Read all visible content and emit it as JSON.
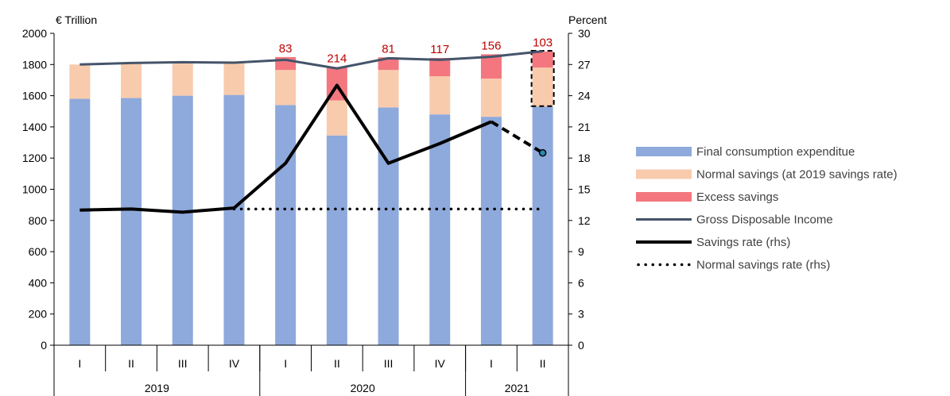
{
  "chart_data": {
    "type": "bar",
    "left_axis_title": "€ Trillion",
    "right_axis_title": "Percent",
    "ylim": [
      0,
      2000
    ],
    "y_ticks": [
      0,
      200,
      400,
      600,
      800,
      1000,
      1200,
      1400,
      1600,
      1800,
      2000
    ],
    "y2lim": [
      0,
      30
    ],
    "y2_ticks": [
      0,
      3,
      6,
      9,
      12,
      15,
      18,
      21,
      24,
      27,
      30
    ],
    "categories": [
      "I",
      "II",
      "III",
      "IV",
      "I",
      "II",
      "III",
      "IV",
      "I",
      "II"
    ],
    "year_groups": [
      {
        "label": "2019",
        "span": 4
      },
      {
        "label": "2020",
        "span": 4
      },
      {
        "label": "2021",
        "span": 2
      }
    ],
    "series": [
      {
        "name": "Final consumption expenditue",
        "kind": "stacked-bar",
        "color": "#8ea9db",
        "values": [
          1580,
          1585,
          1600,
          1605,
          1540,
          1345,
          1525,
          1480,
          1465,
          1530
        ]
      },
      {
        "name": "Normal savings (at 2019 savings rate)",
        "kind": "stacked-bar",
        "color": "#f8cbad",
        "values": [
          220,
          220,
          220,
          215,
          225,
          225,
          240,
          245,
          245,
          250
        ]
      },
      {
        "name": "Excess savings",
        "kind": "stacked-bar",
        "color": "#f4777f",
        "values": [
          0,
          0,
          0,
          0,
          83,
          214,
          81,
          117,
          156,
          103
        ]
      },
      {
        "name": "Gross Disposable Income",
        "kind": "line",
        "axis": "left",
        "color": "#44546a",
        "values": [
          1800,
          1810,
          1815,
          1812,
          1830,
          1775,
          1840,
          1830,
          1850,
          1885
        ]
      },
      {
        "name": "Savings rate (rhs)",
        "kind": "line",
        "axis": "right",
        "color": "#000000",
        "values": [
          13.0,
          13.1,
          12.8,
          13.2,
          17.5,
          25.0,
          17.5,
          19.4,
          21.5,
          18.5
        ]
      },
      {
        "name": "Normal savings rate (rhs)",
        "kind": "dotted-line",
        "axis": "right",
        "color": "#000000",
        "values": [
          null,
          null,
          null,
          13.1,
          13.1,
          13.1,
          13.1,
          13.1,
          13.1,
          13.1
        ]
      }
    ],
    "excess_labels": [
      null,
      null,
      null,
      null,
      "83",
      "214",
      "81",
      "117",
      "156",
      "103"
    ],
    "label_color": "#c00000",
    "legend_placement": "right",
    "grid": false
  }
}
